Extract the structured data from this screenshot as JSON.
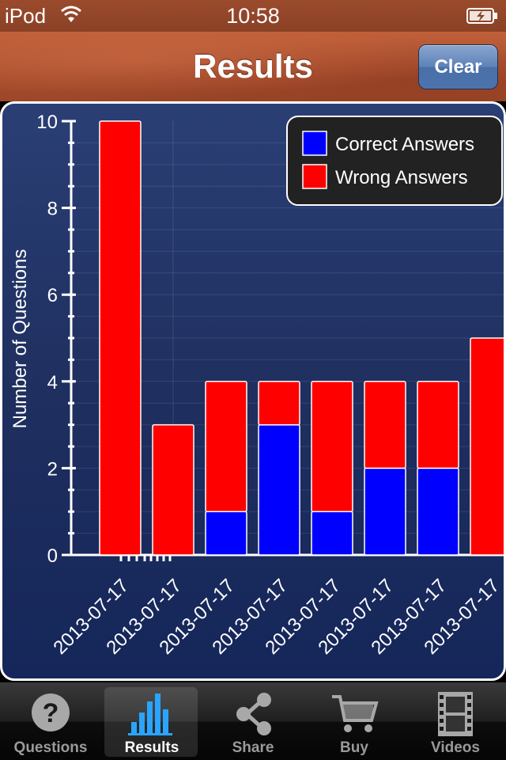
{
  "status_bar": {
    "carrier": "iPod",
    "time": "10:58"
  },
  "nav": {
    "title": "Results",
    "clear_label": "Clear"
  },
  "chart_data": {
    "type": "bar",
    "stacked": true,
    "categories": [
      "2013-07-17",
      "2013-07-17",
      "2013-07-17",
      "2013-07-17",
      "2013-07-17",
      "2013-07-17",
      "2013-07-17",
      "2013-07-17"
    ],
    "series": [
      {
        "name": "Correct Answers",
        "color": "#0000ff",
        "values": [
          0,
          0,
          1,
          3,
          1,
          2,
          2,
          0
        ]
      },
      {
        "name": "Wrong Answers",
        "color": "#ff0000",
        "values": [
          10,
          3,
          3,
          1,
          3,
          2,
          2,
          5
        ]
      }
    ],
    "ylabel": "Number of Questions",
    "ylim": [
      0,
      10
    ],
    "yticks": [
      "0",
      "2",
      "4",
      "6",
      "8",
      "10"
    ],
    "legend": "top-right",
    "grid": true
  },
  "tabs": [
    {
      "label": "Questions",
      "icon": "question-icon",
      "selected": false
    },
    {
      "label": "Results",
      "icon": "bar-chart-icon",
      "selected": true
    },
    {
      "label": "Share",
      "icon": "share-icon",
      "selected": false
    },
    {
      "label": "Buy",
      "icon": "cart-icon",
      "selected": false
    },
    {
      "label": "Videos",
      "icon": "film-icon",
      "selected": false
    }
  ]
}
